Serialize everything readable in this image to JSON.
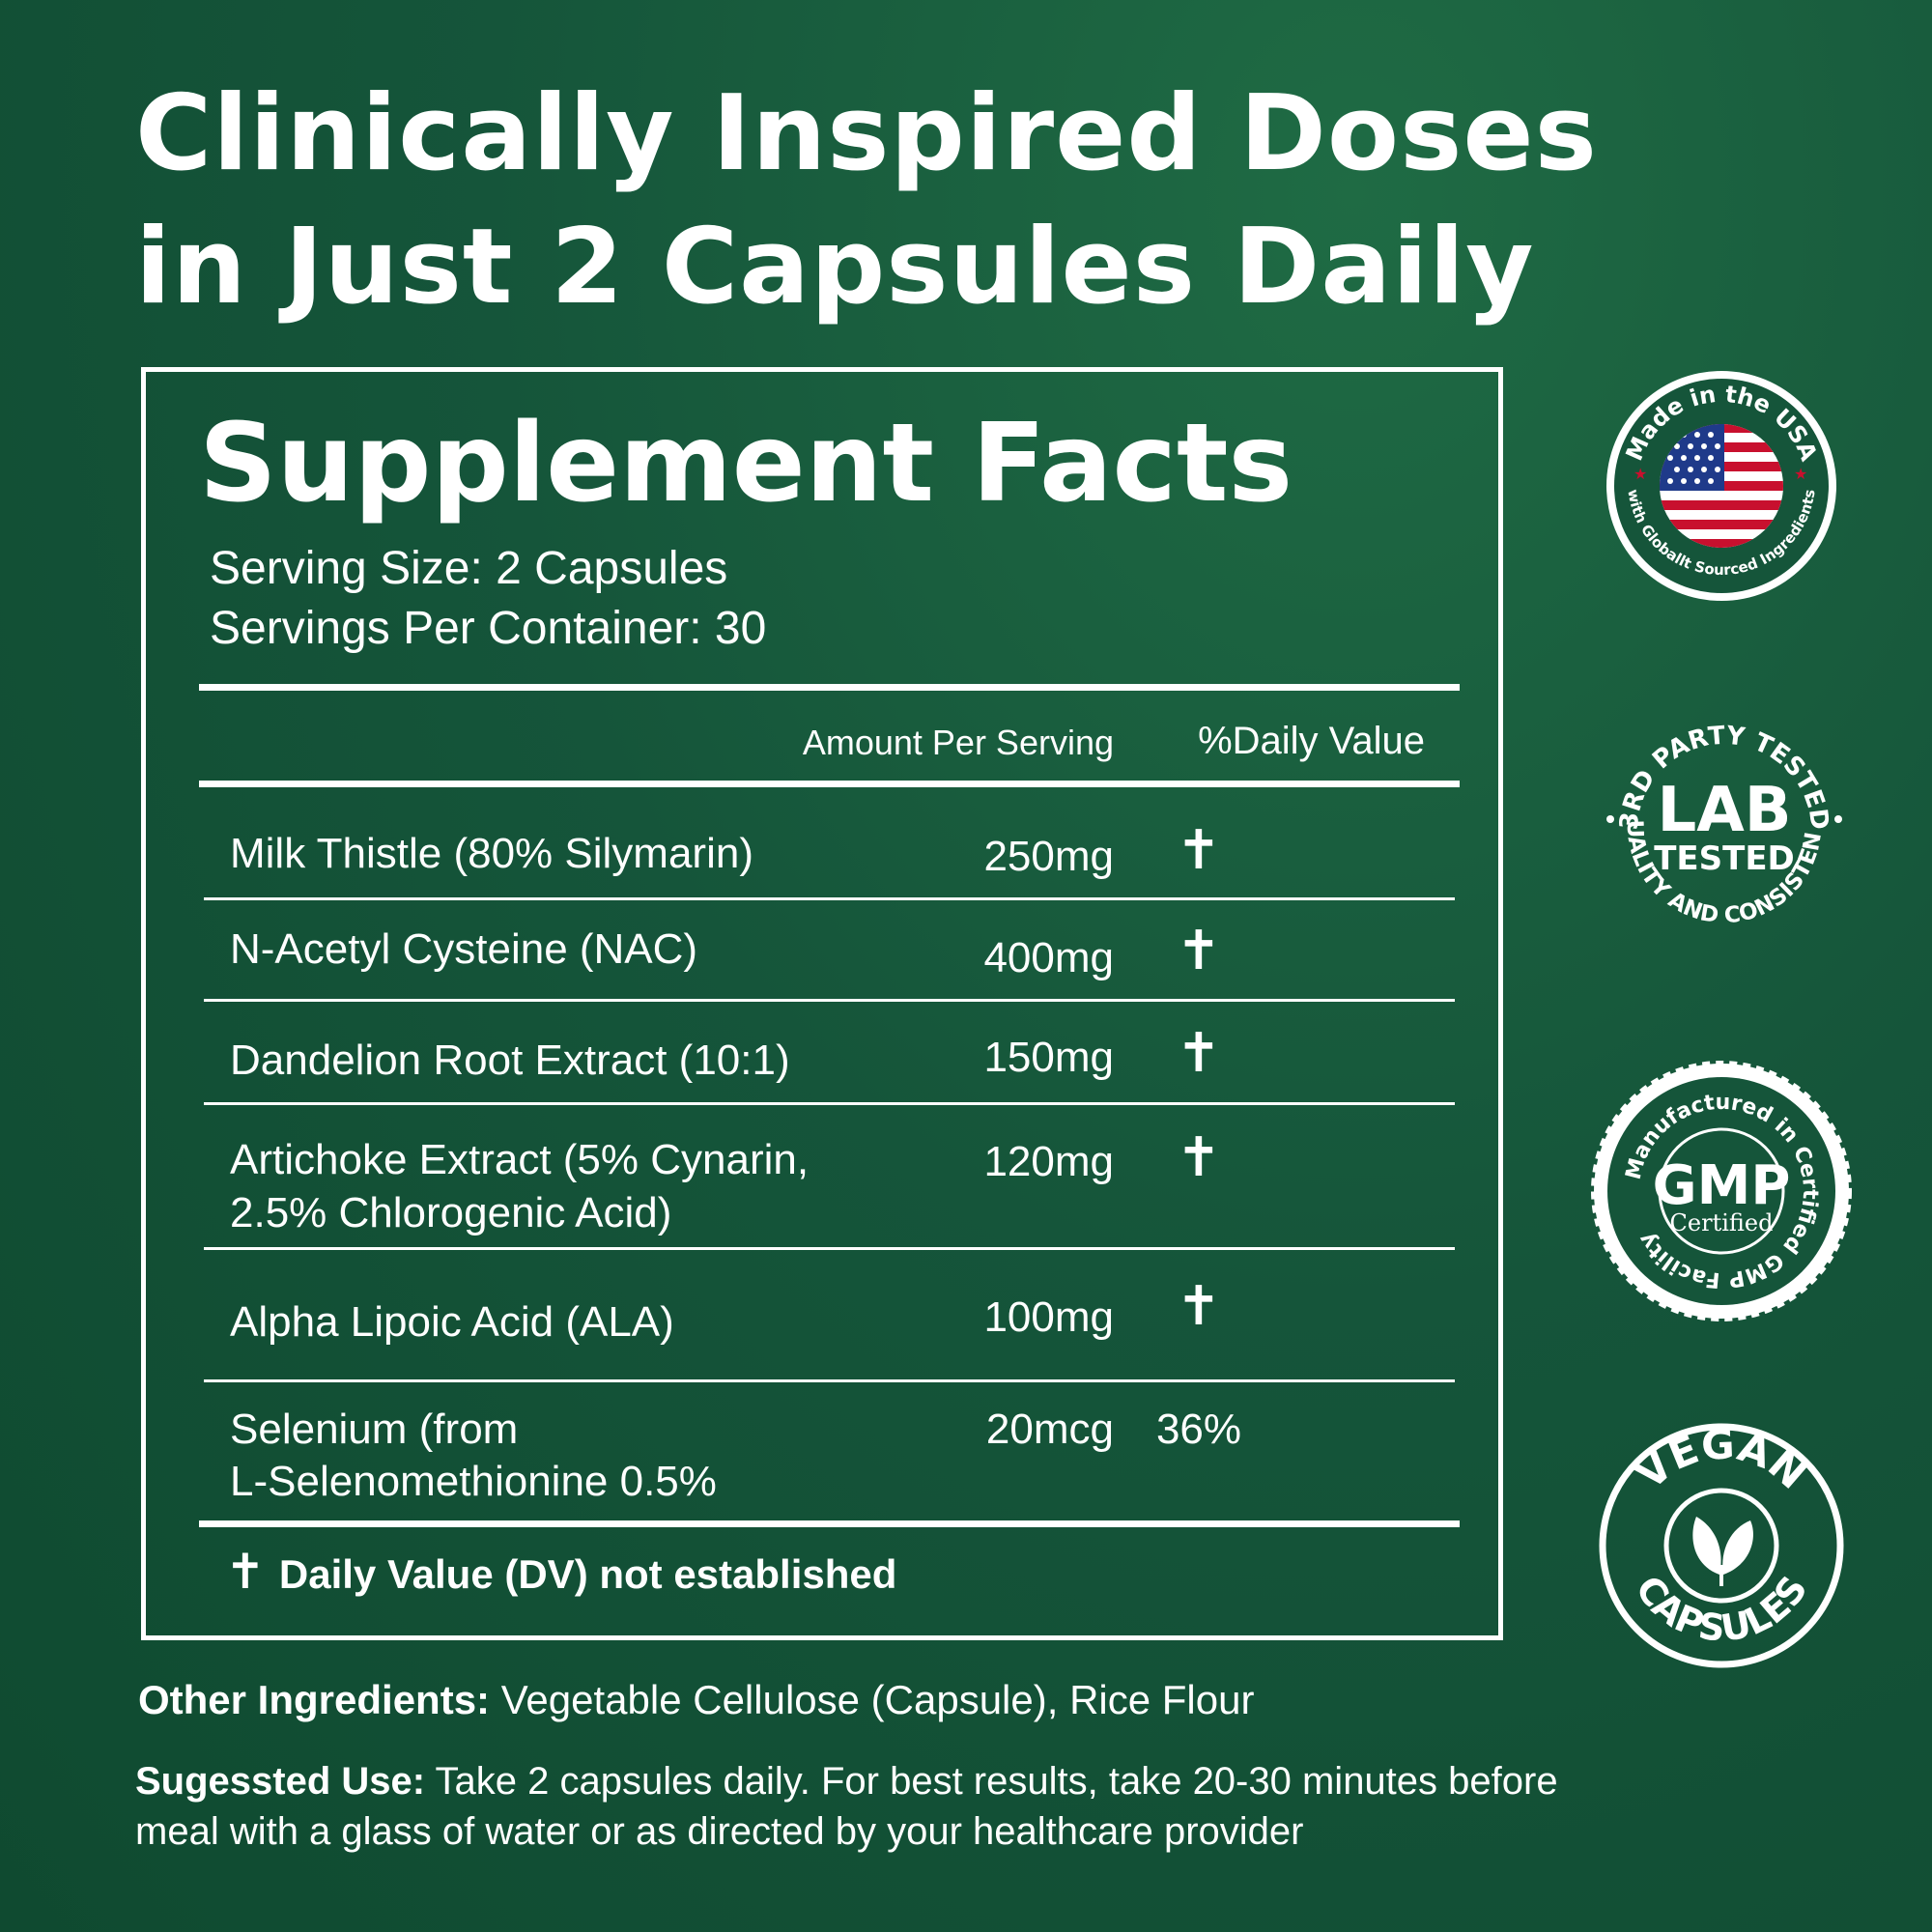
{
  "headline": {
    "line1": "Clinically Inspired Doses",
    "line2": "in Just 2 Capsules Daily"
  },
  "facts": {
    "title": "Supplement Facts",
    "serving_size": "Serving Size: 2 Capsules",
    "servings_per_container": "Servings Per Container: 30",
    "columns": {
      "amount": "Amount Per Serving",
      "daily_value": "%Daily Value"
    },
    "rows": [
      {
        "name_line1": "Milk Thistle (80% Silymarin)",
        "name_line2": "",
        "amount": "250mg",
        "dv": "✝"
      },
      {
        "name_line1": "N-Acetyl Cysteine (NAC)",
        "name_line2": "",
        "amount": "400mg",
        "dv": "✝"
      },
      {
        "name_line1": "Dandelion Root Extract (10:1)",
        "name_line2": "",
        "amount": "150mg",
        "dv": "✝"
      },
      {
        "name_line1": "Artichoke Extract (5% Cynarin,",
        "name_line2": "2.5% Chlorogenic Acid)",
        "amount": "120mg",
        "dv": "✝"
      },
      {
        "name_line1": "Alpha Lipoic Acid (ALA)",
        "name_line2": "",
        "amount": "100mg",
        "dv": "✝"
      },
      {
        "name_line1": "Selenium (from",
        "name_line2": "L-Selenomethionine 0.5%",
        "amount": "20mcg",
        "dv": "36%"
      }
    ],
    "footnote_symbol": "✝",
    "footnote_text": "Daily Value (DV) not established"
  },
  "other_ingredients": {
    "label": "Other Ingredients:",
    "text": " Vegetable Cellulose (Capsule), Rice Flour"
  },
  "suggested_use": {
    "label": "Sugessted Use:",
    "text": " Take 2 capsules daily. For best results, take 20-30 minutes before meal with a glass of water or as directed by your healthcare provider"
  },
  "badges": {
    "usa": {
      "top_text": "Made in the USA",
      "bottom_text": "with Globallt Sourced Ingredients",
      "icon": "usa-flag-icon"
    },
    "lab": {
      "top_text": "3RD PARTY TESTED",
      "main_line1": "LAB",
      "main_line2": "TESTED",
      "bottom_text": "QUALITY AND CONSISTENCY"
    },
    "gmp": {
      "main": "GMP",
      "sub": "Certified",
      "ring_text": "Manufactured in Certified GMP Facility"
    },
    "vegan": {
      "top_text": "VEGAN",
      "bottom_text": "CAPSULES",
      "icon": "leaf-icon"
    }
  },
  "colors": {
    "background": "#15553a",
    "text": "#ffffff",
    "flag_red": "#c8102e",
    "flag_blue": "#1f3a8a"
  }
}
